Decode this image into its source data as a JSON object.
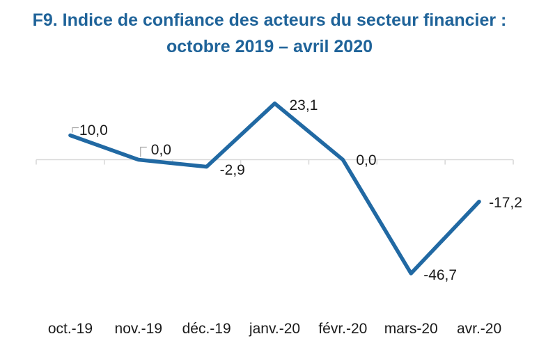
{
  "header": {
    "title_line1": "F9. Indice de confiance des acteurs du secteur financier :",
    "title_line2": "octobre 2019 – avril 2020"
  },
  "colors": {
    "title": "#1F6399",
    "line": "#2169A3",
    "axis": "#D9D9D9",
    "leader": "#A6A6A6",
    "label_text": "#1A1A1A",
    "background": "#FFFFFF"
  },
  "chart_data": {
    "type": "line",
    "title": "F9. Indice de confiance des acteurs du secteur financier : octobre 2019 – avril 2020",
    "categories": [
      "oct.-19",
      "nov.-19",
      "déc.-19",
      "janv.-20",
      "févr.-20",
      "mars-20",
      "avr.-20"
    ],
    "values": [
      10.0,
      0.0,
      -2.9,
      23.1,
      0.0,
      -46.7,
      -17.2
    ],
    "point_labels": [
      "10,0",
      "0,0",
      "-2,9",
      "23,1",
      "0,0",
      "-46,7",
      "-17,2"
    ],
    "xlabel": "",
    "ylabel": "",
    "ylim": [
      -55,
      30
    ],
    "baseline": 0,
    "grid": false,
    "legend_position": "none",
    "decimal_separator": ","
  }
}
